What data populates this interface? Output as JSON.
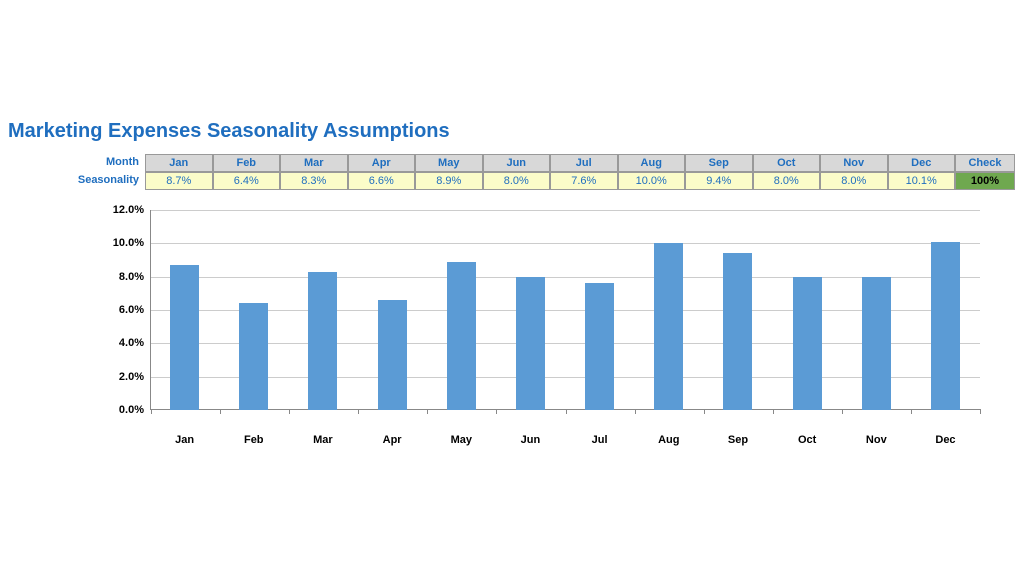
{
  "title": "Marketing Expenses Seasonality Assumptions",
  "table": {
    "row1_label": "Month",
    "row2_label": "Seasonality",
    "months": [
      "Jan",
      "Feb",
      "Mar",
      "Apr",
      "May",
      "Jun",
      "Jul",
      "Aug",
      "Sep",
      "Oct",
      "Nov",
      "Dec"
    ],
    "values_display": [
      "8.7%",
      "6.4%",
      "8.3%",
      "6.6%",
      "8.9%",
      "8.0%",
      "7.6%",
      "10.0%",
      "9.4%",
      "8.0%",
      "8.0%",
      "10.1%"
    ],
    "check_label": "Check",
    "check_value": "100%",
    "header_bg": "#d8d8d8",
    "value_bg": "#fbfcc9",
    "check_bg": "#6fa84f",
    "text_color": "#1f6ebf",
    "border_color": "#999999"
  },
  "chart": {
    "type": "bar",
    "categories": [
      "Jan",
      "Feb",
      "Mar",
      "Apr",
      "May",
      "Jun",
      "Jul",
      "Aug",
      "Sep",
      "Oct",
      "Nov",
      "Dec"
    ],
    "values": [
      8.7,
      6.4,
      8.3,
      6.6,
      8.9,
      8.0,
      7.6,
      10.0,
      9.4,
      8.0,
      8.0,
      10.1
    ],
    "bar_color": "#5b9bd5",
    "ymin": 0.0,
    "ymax": 12.0,
    "ytick_step": 2.0,
    "yticks": [
      "0.0%",
      "2.0%",
      "4.0%",
      "6.0%",
      "8.0%",
      "10.0%",
      "12.0%"
    ],
    "grid_color": "#cccccc",
    "axis_color": "#888888",
    "background_color": "#ffffff",
    "label_fontsize": 11,
    "label_fontweight": "bold"
  }
}
